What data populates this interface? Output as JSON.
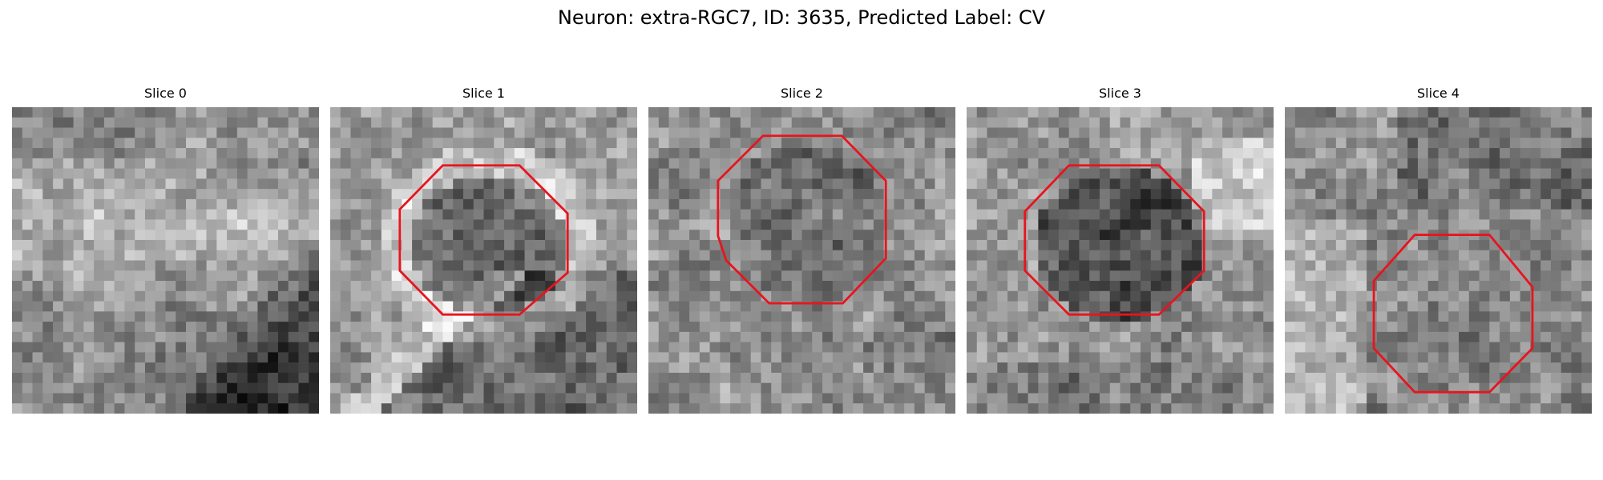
{
  "figure": {
    "title": "Neuron: extra-RGC7, ID: 3635, Predicted Label: CV"
  },
  "colors": {
    "roi_outline": "#e8141e",
    "background": "#ffffff"
  },
  "panels": [
    {
      "label": "Slice 0",
      "has_roi": false
    },
    {
      "label": "Slice 1",
      "has_roi": true
    },
    {
      "label": "Slice 2",
      "has_roi": true
    },
    {
      "label": "Slice 3",
      "has_roi": true
    },
    {
      "label": "Slice 4",
      "has_roi": true
    }
  ]
}
